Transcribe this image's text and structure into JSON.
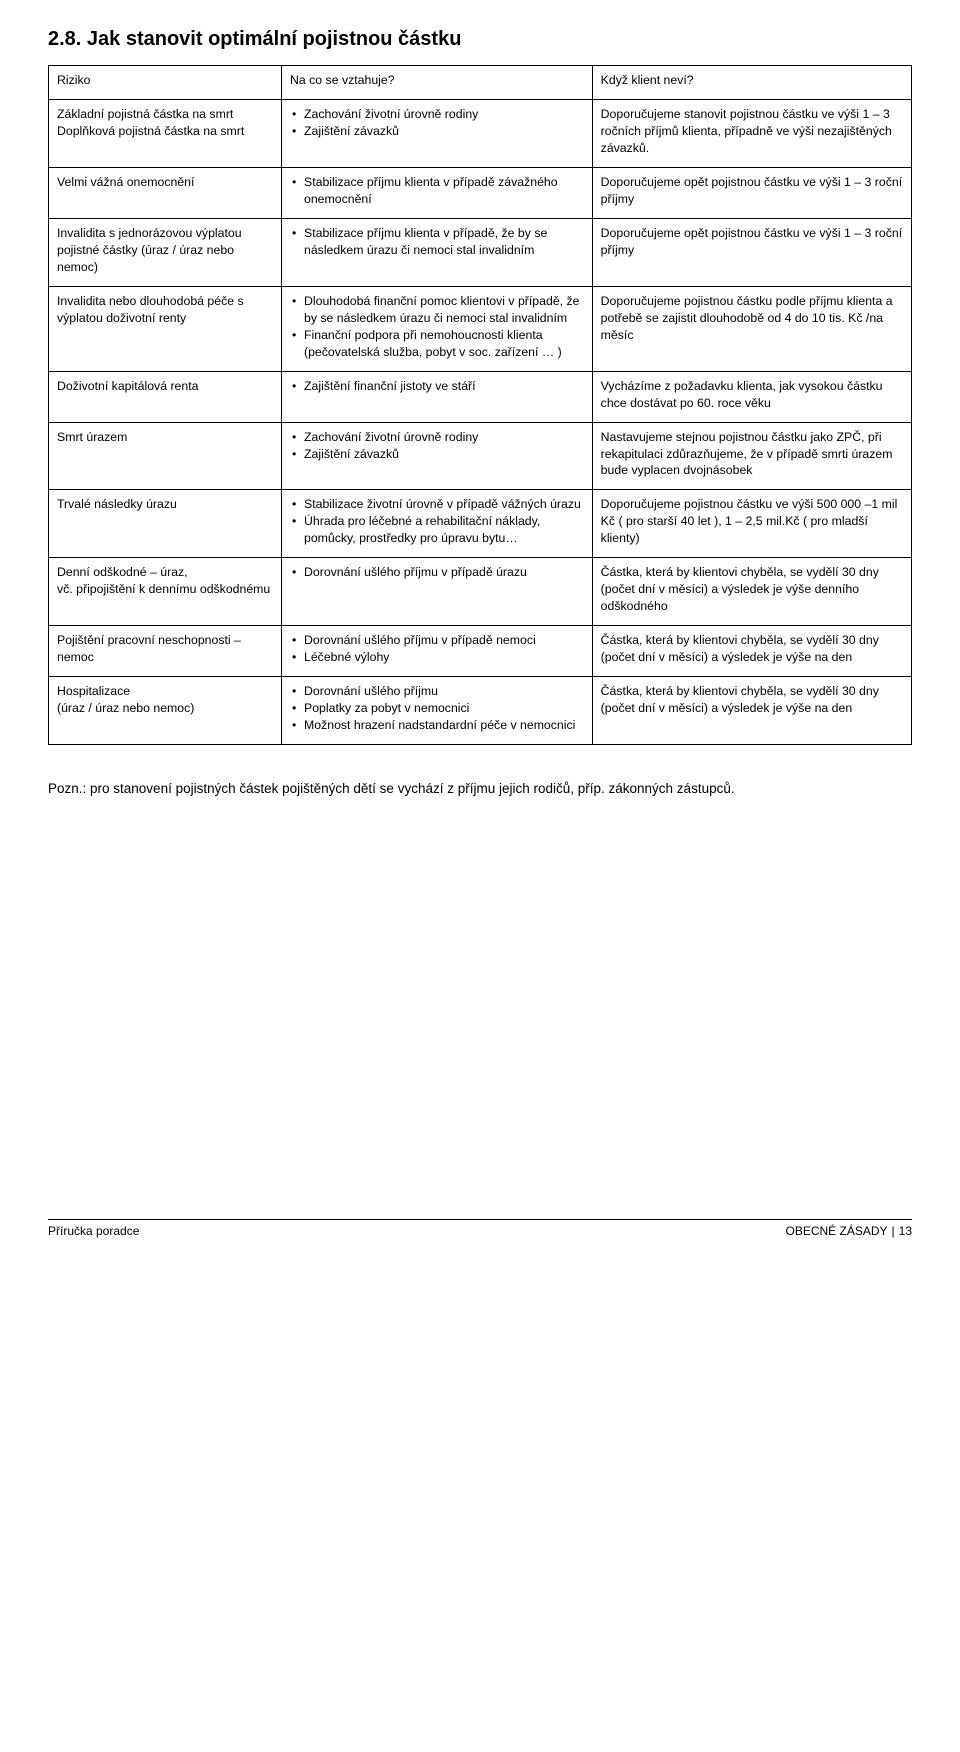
{
  "title": "2.8. Jak stanovit optimální pojistnou částku",
  "columns": [
    "Riziko",
    "Na co se vztahuje?",
    "Když klient neví?"
  ],
  "rows": [
    {
      "c1": "Základní pojistná částka na smrt\nDoplňková pojistná částka na smrt",
      "c2_bullets": [
        "Zachování životní úrovně rodiny",
        "Zajištění závazků"
      ],
      "c3": "Doporučujeme stanovit pojistnou částku ve výši 1 – 3 ročních příjmů klienta, případně ve výši nezajištěných závazků."
    },
    {
      "c1": "Velmi vážná onemocnění",
      "c2_bullets": [
        "Stabilizace příjmu klienta v případě závažného onemocnění"
      ],
      "c3": "Doporučujeme opět pojistnou částku ve výši 1 – 3 roční příjmy"
    },
    {
      "c1": "Invalidita s jednorázovou výplatou pojistné částky (úraz / úraz nebo nemoc)",
      "c2_bullets": [
        "Stabilizace příjmu klienta v případě, že by se následkem úrazu či nemoci stal invalidním"
      ],
      "c3": "Doporučujeme opět pojistnou částku ve výši 1 – 3 roční příjmy"
    },
    {
      "c1": "Invalidita nebo dlouhodobá péče s výplatou doživotní renty",
      "c2_bullets": [
        "Dlouhodobá finanční pomoc klientovi v případě, že by se následkem úrazu či nemoci stal invalidním",
        "Finanční podpora při nemohoucnosti klienta (pečovatelská služba, pobyt v soc. zařízení … )"
      ],
      "c3": "Doporučujeme pojistnou částku podle příjmu klienta a potřebě se zajistit dlouhodobě od 4 do 10 tis. Kč /na měsíc"
    },
    {
      "c1": "Doživotní kapitálová renta",
      "c2_bullets": [
        "Zajištění finanční jistoty ve stáří"
      ],
      "c3": "Vycházíme z požadavku klienta, jak vysokou částku chce dostávat po 60. roce věku"
    },
    {
      "c1": "Smrt úrazem",
      "c2_bullets": [
        "Zachování životní úrovně rodiny",
        "Zajištění závazků"
      ],
      "c3": "Nastavujeme stejnou pojistnou částku jako ZPČ, při rekapitulaci zdůrazňujeme, že v případě smrti úrazem bude vyplacen dvojnásobek"
    },
    {
      "c1": "Trvalé následky úrazu",
      "c2_bullets": [
        "Stabilizace životní úrovně v případě vážných úrazu",
        "Úhrada pro léčebné a rehabilitační náklady, pomůcky, prostředky pro úpravu bytu…"
      ],
      "c3": "Doporučujeme pojistnou částku ve výši 500 000 –1 mil Kč ( pro starší 40 let ), 1 – 2,5 mil.Kč ( pro mladší klienty)"
    },
    {
      "c1": "Denní odškodné – úraz,\nvč. připojištění k dennímu odškodnému",
      "c2_bullets": [
        "Dorovnání ušlého příjmu v případě úrazu"
      ],
      "c3": "Částka, která by klientovi chyběla, se vydělí 30 dny (počet dní v měsíci) a výsledek je výše denního odškodného"
    },
    {
      "c1": "Pojištění pracovní neschopnosti – nemoc",
      "c2_bullets": [
        "Dorovnání ušlého příjmu v případě nemoci",
        "Léčebné výlohy"
      ],
      "c3": "Částka, která by klientovi chyběla, se vydělí 30 dny (počet dní v měsíci) a výsledek je výše na den"
    },
    {
      "c1": "Hospitalizace\n(úraz / úraz nebo nemoc)",
      "c2_bullets": [
        "Dorovnání ušlého příjmu",
        "Poplatky za pobyt v nemocnici",
        "Možnost hrazení nadstandardní péče v nemocnici"
      ],
      "c3": "Částka, která by klientovi chyběla, se vydělí 30 dny (počet dní v měsíci) a výsledek je výše na den"
    }
  ],
  "note": "Pozn.: pro stanovení pojistných částek pojištěných dětí se vychází z příjmu jejich rodičů, příp. zákonných zástupců.",
  "footer": {
    "left": "Příručka poradce",
    "right_section": "OBECNÉ ZÁSADY",
    "right_page": "13"
  }
}
